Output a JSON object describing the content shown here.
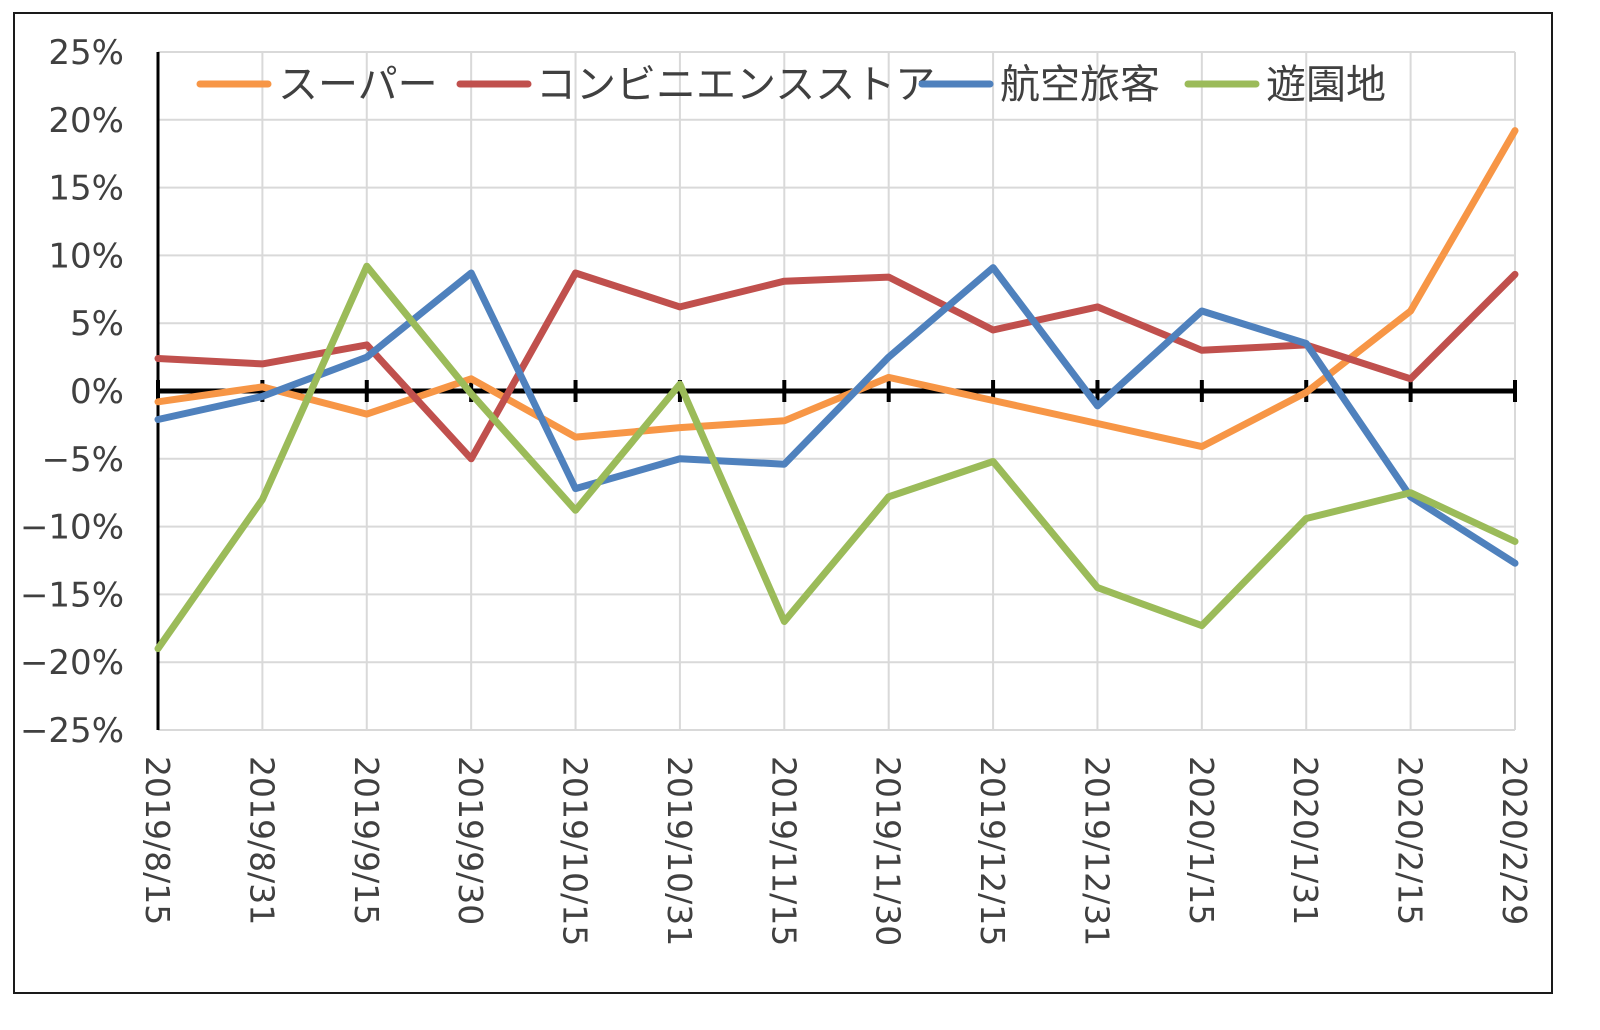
{
  "chart_data": {
    "type": "line",
    "categories": [
      "2019/8/15",
      "2019/8/31",
      "2019/9/15",
      "2019/9/30",
      "2019/10/15",
      "2019/10/31",
      "2019/11/15",
      "2019/11/30",
      "2019/12/15",
      "2019/12/31",
      "2020/1/15",
      "2020/1/31",
      "2020/2/15",
      "2020/2/29"
    ],
    "ylim": [
      -25,
      25
    ],
    "yticks": [
      25,
      20,
      15,
      10,
      5,
      0,
      -5,
      -10,
      -15,
      -20,
      -25
    ],
    "ytick_labels": [
      "25%",
      "20%",
      "15%",
      "10%",
      "5%",
      "0%",
      "−5%",
      "−10%",
      "−15%",
      "−20%",
      "−25%"
    ],
    "grid": true,
    "legend_position": "top",
    "series": [
      {
        "name": "スーパー",
        "color": "#F79646",
        "values": [
          -0.8,
          0.3,
          -1.7,
          0.9,
          -3.4,
          -2.7,
          -2.2,
          1.0,
          -0.7,
          -2.4,
          -4.1,
          -0.1,
          5.9,
          19.2
        ]
      },
      {
        "name": "コンビニエンスストア",
        "color": "#C0504D",
        "values": [
          2.4,
          2.0,
          3.4,
          -5.0,
          8.7,
          6.2,
          8.1,
          8.4,
          4.5,
          6.2,
          3.0,
          3.4,
          0.9,
          8.6
        ]
      },
      {
        "name": "航空旅客",
        "color": "#4F81BD",
        "values": [
          -2.1,
          -0.4,
          2.5,
          8.7,
          -7.2,
          -5.0,
          -5.4,
          2.5,
          9.1,
          -1.1,
          5.9,
          3.5,
          -7.8,
          -12.7
        ]
      },
      {
        "name": "遊園地",
        "color": "#9BBB59",
        "values": [
          -19.0,
          -8.0,
          9.2,
          -0.2,
          -8.8,
          0.5,
          -17.0,
          -7.8,
          -5.2,
          -14.5,
          -17.3,
          -9.4,
          -7.5,
          -11.1
        ]
      }
    ]
  }
}
